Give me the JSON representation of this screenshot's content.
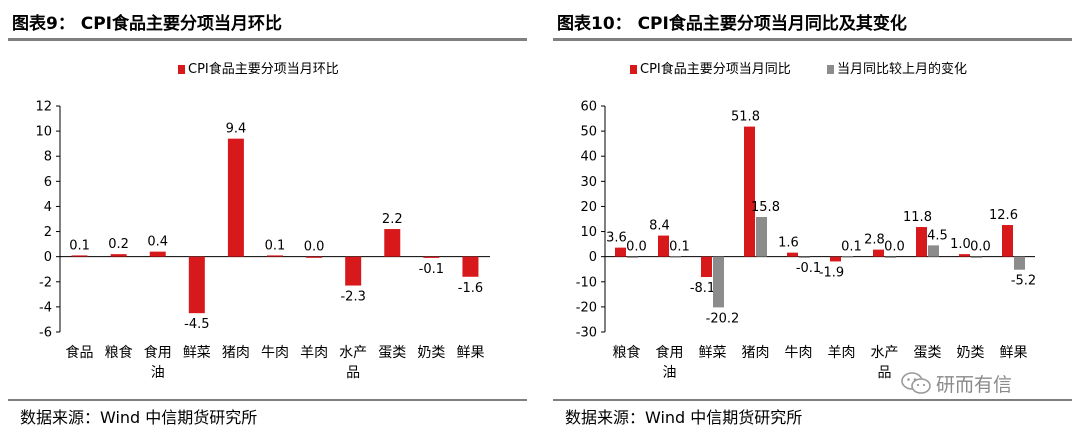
{
  "left": {
    "title": "图表9： CPI食品主要分项当月环比",
    "source": "数据来源：Wind 中信期货研究所"
  },
  "right": {
    "title": "图表10： CPI食品主要分项当月同比及其变化",
    "source": "数据来源：Wind 中信期货研究所"
  },
  "watermark": {
    "text": "研而有信",
    "icon": "wechat-icon"
  },
  "colors": {
    "red": "#d7191c",
    "gray": "#8c8c8c"
  },
  "chart_data": [
    {
      "type": "bar",
      "title": "图表9： CPI食品主要分项当月环比",
      "categories": [
        [
          "食品"
        ],
        [
          "粮食"
        ],
        [
          "食用",
          "油"
        ],
        [
          "鲜菜"
        ],
        [
          "猪肉"
        ],
        [
          "牛肉"
        ],
        [
          "羊肉"
        ],
        [
          "水产",
          "品"
        ],
        [
          "蛋类"
        ],
        [
          "奶类"
        ],
        [
          "鲜果"
        ]
      ],
      "series": [
        {
          "name": "CPI食品主要分项当月环比",
          "color": "#d7191c",
          "values": [
            0.1,
            0.2,
            0.4,
            -4.5,
            9.4,
            0.1,
            0.0,
            -2.3,
            2.2,
            -0.1,
            -1.6
          ],
          "labels": [
            "0.1",
            "0.2",
            "0.4",
            "-4.5",
            "9.4",
            "0.1",
            "0.0",
            "-2.3",
            "2.2",
            "-0.1",
            "-1.6"
          ]
        }
      ],
      "ylim": [
        -6,
        12
      ],
      "yticks": [
        -6,
        -4,
        -2,
        0,
        2,
        4,
        6,
        8,
        10,
        12
      ],
      "legend": "top-center",
      "grid": false
    },
    {
      "type": "bar",
      "title": "图表10： CPI食品主要分项当月同比及其变化",
      "categories": [
        [
          "粮食"
        ],
        [
          "食用",
          "油"
        ],
        [
          "鲜菜"
        ],
        [
          "猪肉"
        ],
        [
          "牛肉"
        ],
        [
          "羊肉"
        ],
        [
          "水产",
          "品"
        ],
        [
          "蛋类"
        ],
        [
          "奶类"
        ],
        [
          "鲜果"
        ]
      ],
      "series": [
        {
          "name": "CPI食品主要分项当月同比",
          "color": "#d7191c",
          "values": [
            3.6,
            8.4,
            -8.1,
            51.8,
            1.6,
            -1.9,
            2.8,
            11.8,
            1.0,
            12.6
          ],
          "labels": [
            "3.6",
            "8.4",
            "-8.1",
            "51.8",
            "1.6",
            "-1.9",
            "2.8",
            "11.8",
            "1.0",
            "12.6"
          ]
        },
        {
          "name": "当月同比较上月的变化",
          "color": "#8c8c8c",
          "values": [
            0.0,
            0.1,
            -20.2,
            15.8,
            -0.1,
            0.1,
            0.0,
            4.5,
            0.0,
            -5.2
          ],
          "labels": [
            "0.0",
            "0.1",
            "-20.2",
            "15.8",
            "-0.1",
            "0.1",
            "0.0",
            "4.5",
            "0.0",
            "-5.2"
          ]
        }
      ],
      "ylim": [
        -30,
        60
      ],
      "yticks": [
        -30,
        -20,
        -10,
        0,
        10,
        20,
        30,
        40,
        50,
        60
      ],
      "legend": "top-center",
      "grid": false
    }
  ]
}
